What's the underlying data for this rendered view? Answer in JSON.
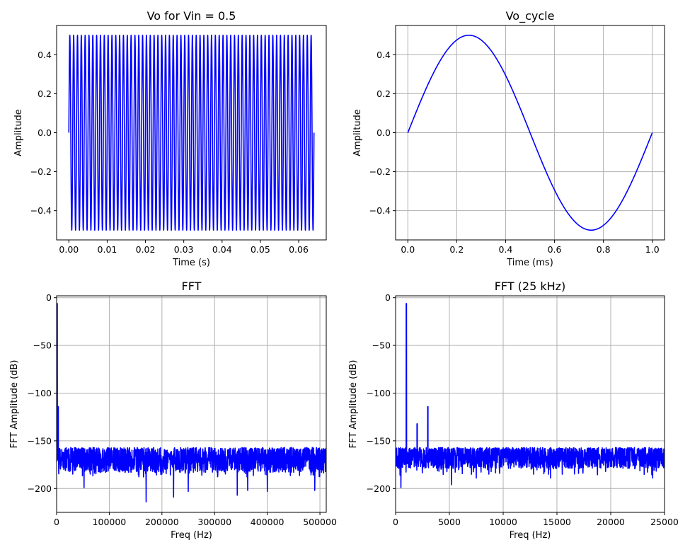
{
  "chart_data": [
    {
      "id": "vo",
      "type": "line",
      "title": "Vo for Vin = 0.5",
      "xlabel": "Time (s)",
      "ylabel": "Amplitude",
      "xlim": [
        -0.0032,
        0.0672
      ],
      "ylim": [
        -0.55,
        0.55
      ],
      "xticks": [
        0.0,
        0.01,
        0.02,
        0.03,
        0.04,
        0.05,
        0.06
      ],
      "xtick_labels": [
        "0.00",
        "0.01",
        "0.02",
        "0.03",
        "0.04",
        "0.05",
        "0.06"
      ],
      "yticks": [
        0.4,
        0.2,
        0.0,
        -0.2,
        -0.4
      ],
      "ytick_labels": [
        "0.4",
        "0.2",
        "0.0",
        "−0.2",
        "−0.4"
      ],
      "grid": false,
      "color": "#0000ff",
      "series": [
        {
          "signal": "sine",
          "amplitude": 0.5,
          "frequency_hz": 1000,
          "t_start": 0.0,
          "t_end": 0.064
        }
      ]
    },
    {
      "id": "vo_cycle",
      "type": "line",
      "title": "Vo_cycle",
      "xlabel": "Time (ms)",
      "ylabel": "Amplitude",
      "xlim": [
        -0.05,
        1.05
      ],
      "ylim": [
        -0.55,
        0.55
      ],
      "xticks": [
        0.0,
        0.2,
        0.4,
        0.6,
        0.8,
        1.0
      ],
      "xtick_labels": [
        "0.0",
        "0.2",
        "0.4",
        "0.6",
        "0.8",
        "1.0"
      ],
      "yticks": [
        0.4,
        0.2,
        0.0,
        -0.2,
        -0.4
      ],
      "ytick_labels": [
        "0.4",
        "0.2",
        "0.0",
        "−0.2",
        "−0.4"
      ],
      "grid": true,
      "color": "#0000ff",
      "series": [
        {
          "x": [
            0,
            0.05,
            0.1,
            0.15,
            0.2,
            0.25,
            0.3,
            0.35,
            0.4,
            0.45,
            0.5,
            0.55,
            0.6,
            0.65,
            0.7,
            0.75,
            0.8,
            0.85,
            0.9,
            0.95,
            1.0
          ],
          "y": [
            0,
            0.155,
            0.294,
            0.405,
            0.476,
            0.5,
            0.476,
            0.405,
            0.294,
            0.155,
            0,
            -0.155,
            -0.294,
            -0.405,
            -0.476,
            -0.5,
            -0.476,
            -0.405,
            -0.294,
            -0.155,
            0
          ]
        }
      ]
    },
    {
      "id": "fft",
      "type": "line",
      "title": "FFT",
      "xlabel": "Freq (Hz)",
      "ylabel": "FFT Amplitude (dB)",
      "xlim": [
        0,
        512000
      ],
      "ylim": [
        -225,
        2
      ],
      "xticks": [
        0,
        100000,
        200000,
        300000,
        400000,
        500000
      ],
      "xtick_labels": [
        "0",
        "100000",
        "200000",
        "300000",
        "400000",
        "500000"
      ],
      "yticks": [
        0,
        -50,
        -100,
        -150,
        -200
      ],
      "ytick_labels": [
        "0",
        "−50",
        "−100",
        "−150",
        "−200"
      ],
      "grid": true,
      "color": "#0000ff",
      "series": [
        {
          "peaks": [
            [
              1000,
              -6
            ],
            [
              2000,
              -132
            ],
            [
              3000,
              -114
            ]
          ],
          "noise_floor": {
            "x_range": [
              0,
              512000
            ],
            "top_db": -157,
            "median_db": -170,
            "min_db": -214
          },
          "deep_dips": [
            [
              52000,
              -199
            ],
            [
              170000,
              -214
            ],
            [
              222000,
              -209
            ],
            [
              250000,
              -203
            ],
            [
              343000,
              -207
            ],
            [
              363000,
              -202
            ],
            [
              400000,
              -203
            ],
            [
              490000,
              -202
            ]
          ]
        }
      ]
    },
    {
      "id": "fft_25k",
      "type": "line",
      "title": "FFT (25 kHz)",
      "xlabel": "Freq (Hz)",
      "ylabel": "FFT Amplitude (dB)",
      "xlim": [
        0,
        25000
      ],
      "ylim": [
        -225,
        2
      ],
      "xticks": [
        0,
        5000,
        10000,
        15000,
        20000,
        25000
      ],
      "xtick_labels": [
        "0",
        "5000",
        "10000",
        "15000",
        "20000",
        "25000"
      ],
      "yticks": [
        0,
        -50,
        -100,
        -150,
        -200
      ],
      "ytick_labels": [
        "0",
        "−50",
        "−100",
        "−150",
        "−200"
      ],
      "grid": true,
      "color": "#0000ff",
      "series": [
        {
          "peaks": [
            [
              1000,
              -6
            ],
            [
              2000,
              -132
            ],
            [
              3000,
              -114
            ]
          ],
          "noise_floor": {
            "x_range": [
              0,
              25000
            ],
            "top_db": -157,
            "median_db": -168,
            "min_db": -199
          },
          "deep_dips": [
            [
              500,
              -199
            ],
            [
              5200,
              -196
            ],
            [
              7500,
              -189
            ],
            [
              14400,
              -189
            ],
            [
              15500,
              -185
            ],
            [
              23900,
              -189
            ]
          ]
        }
      ]
    }
  ]
}
